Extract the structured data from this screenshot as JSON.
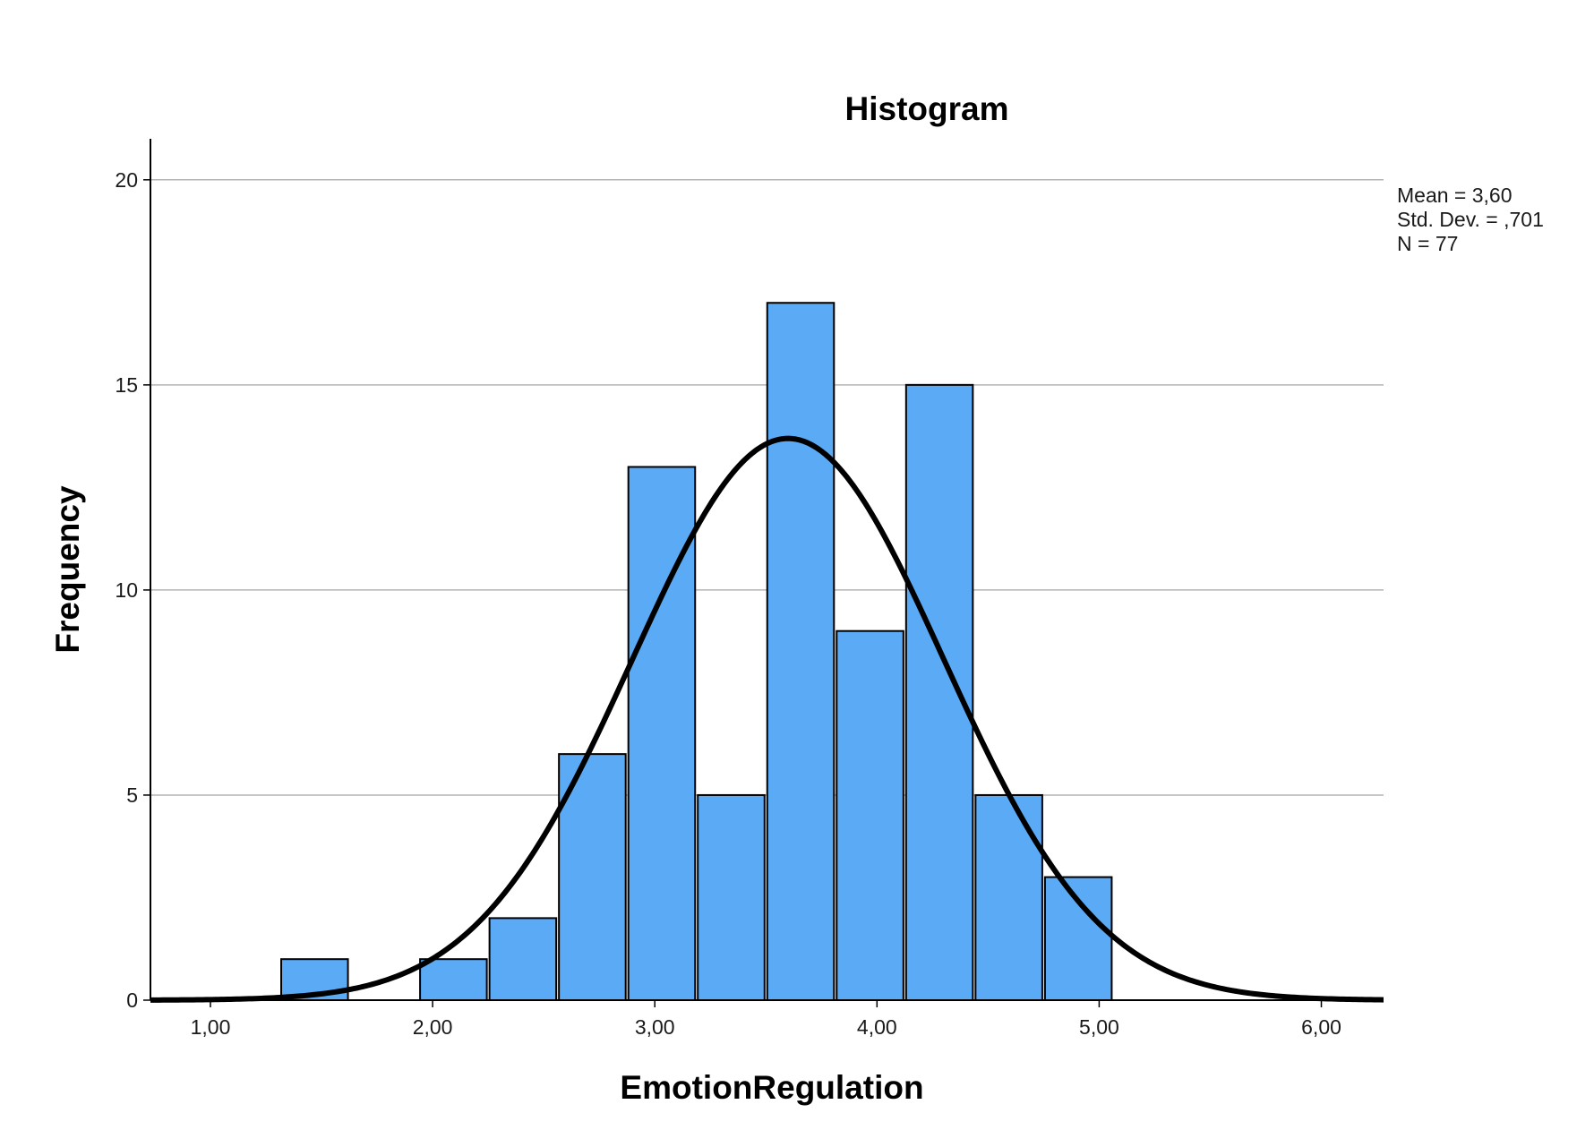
{
  "chart_data": {
    "type": "bar",
    "title": "Histogram",
    "xlabel": "EmotionRegulation",
    "ylabel": "Frequency",
    "xlim": [
      0.73,
      6.28
    ],
    "ylim": [
      0,
      21
    ],
    "x_ticks": [
      1,
      2,
      3,
      4,
      5,
      6
    ],
    "x_tick_labels": [
      "1,00",
      "2,00",
      "3,00",
      "4,00",
      "5,00",
      "6,00"
    ],
    "y_ticks": [
      0,
      5,
      10,
      15,
      20
    ],
    "y_tick_labels": [
      "0",
      "5",
      "10",
      "15",
      "20"
    ],
    "grid": true,
    "bin_width": 0.3125,
    "bins": [
      {
        "start": 1.3125,
        "end": 1.625,
        "count": 1
      },
      {
        "start": 1.625,
        "end": 1.9375,
        "count": 0
      },
      {
        "start": 1.9375,
        "end": 2.25,
        "count": 1
      },
      {
        "start": 2.25,
        "end": 2.5625,
        "count": 2
      },
      {
        "start": 2.5625,
        "end": 2.875,
        "count": 6
      },
      {
        "start": 2.875,
        "end": 3.1875,
        "count": 13
      },
      {
        "start": 3.1875,
        "end": 3.5,
        "count": 5
      },
      {
        "start": 3.5,
        "end": 3.8125,
        "count": 17
      },
      {
        "start": 3.8125,
        "end": 4.125,
        "count": 9
      },
      {
        "start": 4.125,
        "end": 4.4375,
        "count": 15
      },
      {
        "start": 4.4375,
        "end": 4.75,
        "count": 5
      },
      {
        "start": 4.75,
        "end": 5.0625,
        "count": 3
      }
    ],
    "normal_curve": {
      "mean": 3.6,
      "std_dev": 0.701,
      "n": 77
    },
    "bar_color": "#5aaaf5",
    "bar_edge_color": "#000000",
    "curve_color": "#000000",
    "grid_color": "#b4b4b4",
    "stats_lines": [
      "Mean = 3,60",
      "Std. Dev. = ,701",
      "N = 77"
    ],
    "stats_position": "top-right"
  }
}
